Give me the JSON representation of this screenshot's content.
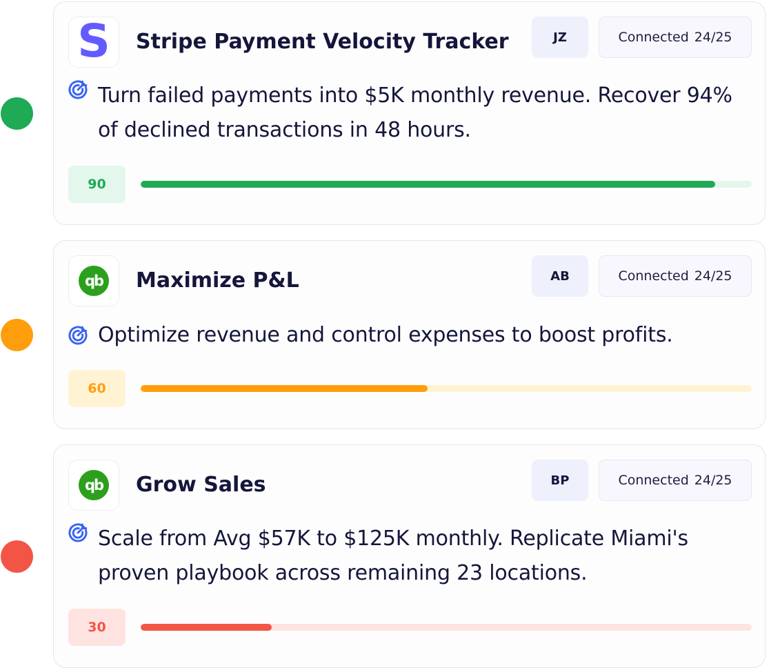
{
  "colors": {
    "green": "#1faa55",
    "green_light": "#e3f7ec",
    "amber": "#ff9e0d",
    "amber_light": "#fff3d4",
    "red": "#f25546",
    "red_light": "#ffe3e1",
    "accent_blue": "#3a64f0",
    "stripe_purple": "#635bff",
    "quickbooks_green": "#2ca01c"
  },
  "goals": [
    {
      "status_color": "#1faa55",
      "logo": {
        "type": "stripe",
        "text": "S",
        "icon": "stripe-logo-icon"
      },
      "title": "Stripe Payment Velocity Tracker",
      "owner_initials": "JZ",
      "connected_label": "Connected",
      "connected_count": "24/25",
      "description": "Turn failed payments into $5K monthly revenue. Recover 94% of declined transactions in 48 hours.",
      "score": "90",
      "progress": 0.94,
      "bar_color": "#1faa55",
      "track_color": "#e3f7ec",
      "badge_bg": "#e3f7ec"
    },
    {
      "status_color": "#ff9e0d",
      "logo": {
        "type": "quickbooks",
        "text": "qb",
        "icon": "quickbooks-logo-icon"
      },
      "title": "Maximize P&L",
      "owner_initials": "AB",
      "connected_label": "Connected",
      "connected_count": "24/25",
      "description": "Optimize revenue and control expenses to boost profits.",
      "score": "60",
      "progress": 0.47,
      "bar_color": "#ff9e0d",
      "track_color": "#fff3d4",
      "badge_bg": "#fff3d4"
    },
    {
      "status_color": "#f25546",
      "logo": {
        "type": "quickbooks",
        "text": "qb",
        "icon": "quickbooks-logo-icon"
      },
      "title": "Grow Sales",
      "owner_initials": "BP",
      "connected_label": "Connected",
      "connected_count": "24/25",
      "description": "Scale from Avg $57K to $125K monthly. Replicate Miami's proven playbook across remaining 23 locations.",
      "score": "30",
      "progress": 0.215,
      "bar_color": "#f25546",
      "track_color": "#ffe3e1",
      "badge_bg": "#ffe3e1"
    }
  ]
}
